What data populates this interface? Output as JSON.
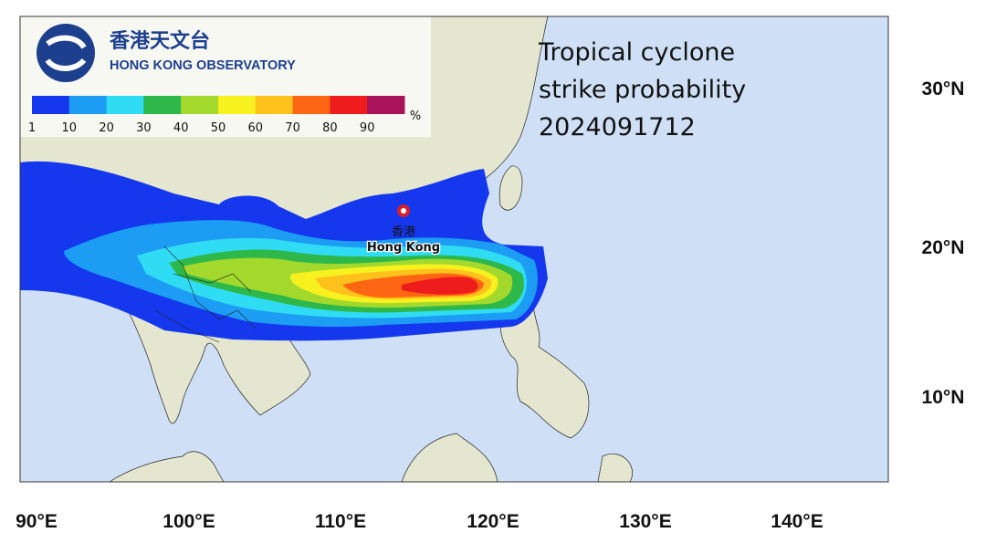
{
  "header": {
    "org_chinese": "香港天文台",
    "org_english": "HONG KONG OBSERVATORY"
  },
  "title": {
    "lines": [
      "Tropical cyclone",
      "strike probability",
      "2024091712"
    ]
  },
  "legend": {
    "levels": [
      1,
      10,
      20,
      30,
      40,
      50,
      60,
      70,
      80,
      90
    ],
    "unit": "%",
    "colors": [
      "#1538ee",
      "#1c9cf2",
      "#2fdcf4",
      "#2fb84a",
      "#a3d92c",
      "#f7f21f",
      "#ffc21c",
      "#ff6613",
      "#ee1c1c",
      "#a8135c"
    ]
  },
  "place": {
    "chinese": "香港",
    "english": "Hong Kong"
  },
  "latitude_labels": [
    "30°N",
    "20°N",
    "10°N"
  ],
  "longitude_labels": [
    "90°E",
    "100°E",
    "110°E",
    "120°E",
    "130°E",
    "140°E"
  ]
}
